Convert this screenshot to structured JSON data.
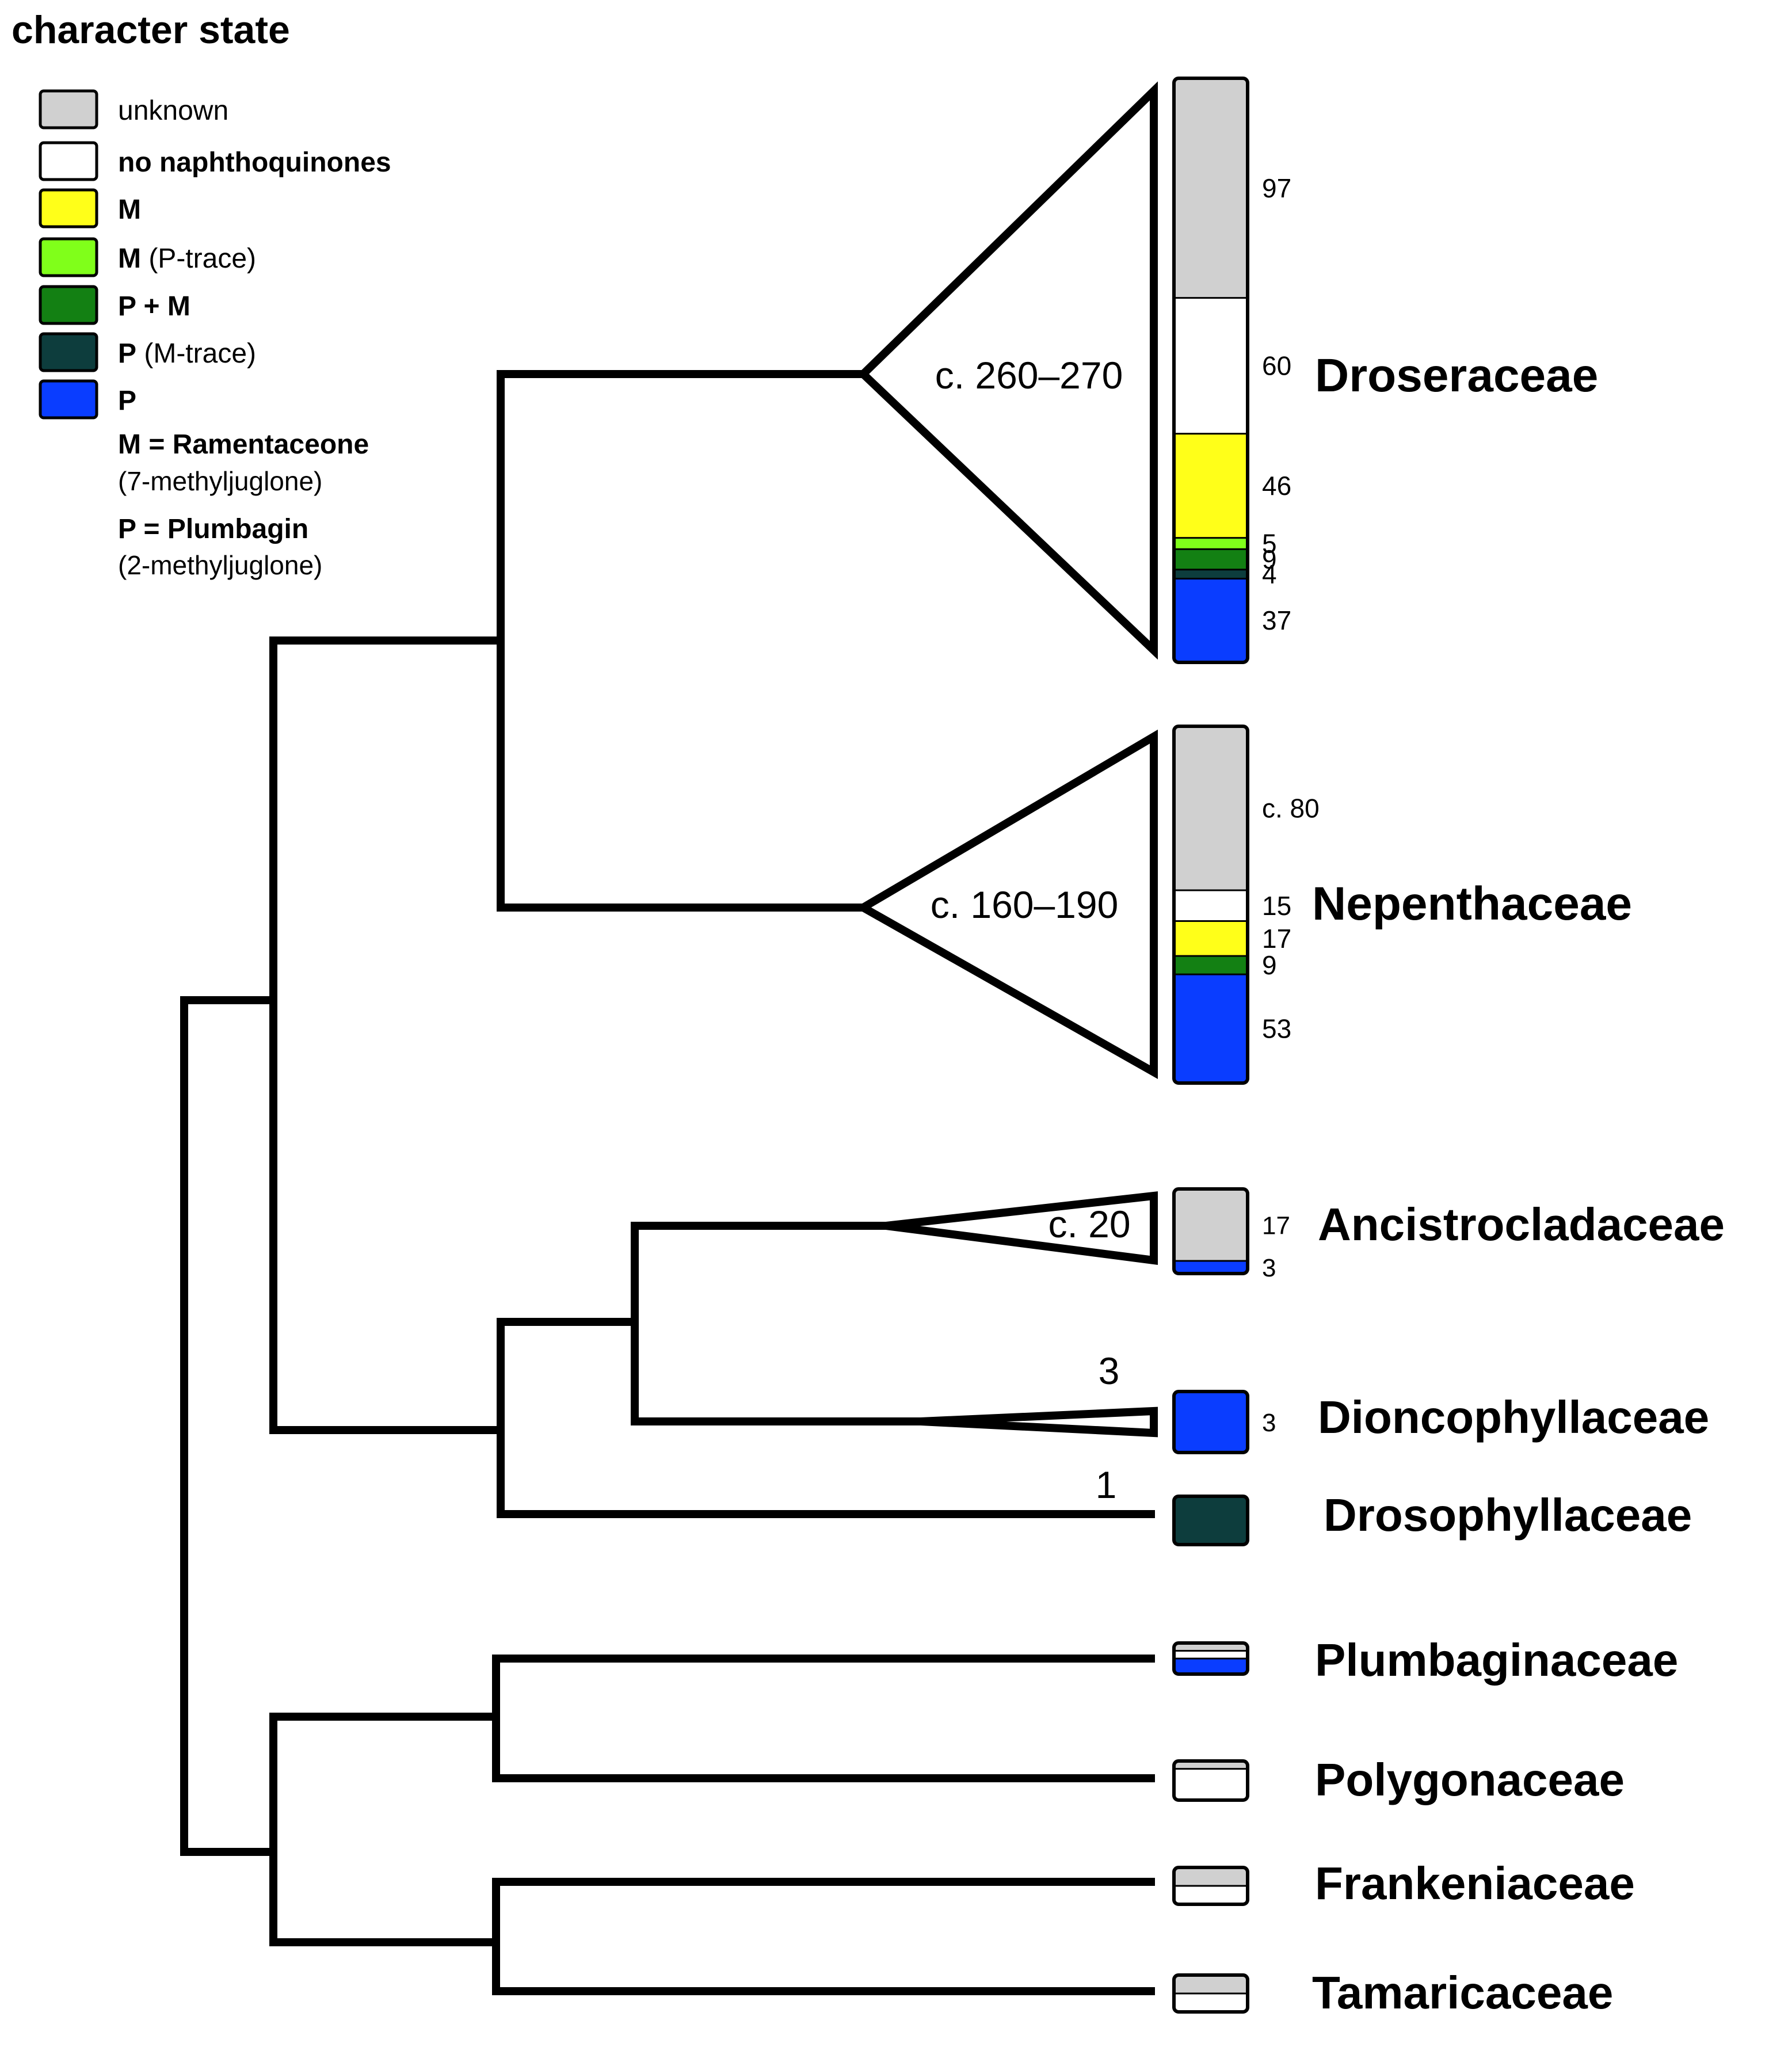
{
  "legend": {
    "title": "character state",
    "items": [
      {
        "key": "unknown",
        "bold": "",
        "rest": "unknown",
        "color": "#d0d0d0"
      },
      {
        "key": "none",
        "bold": "no naphthoquinones",
        "rest": "",
        "color": "#ffffff"
      },
      {
        "key": "M",
        "bold": "M",
        "rest": "",
        "color": "#ffff19"
      },
      {
        "key": "M_Ptrace",
        "bold": "M",
        "rest": " (P-trace)",
        "color": "#80ff1a"
      },
      {
        "key": "PM",
        "bold": "P + M",
        "rest": "",
        "color": "#138013"
      },
      {
        "key": "P_Mtrace",
        "bold": "P",
        "rest": " (M-trace)",
        "color": "#0d3d3d"
      },
      {
        "key": "P",
        "bold": "P",
        "rest": "",
        "color": "#0a3dff"
      }
    ],
    "notes": [
      {
        "bold": "M = Ramentaceone",
        "plain": "(7-methyljuglone)"
      },
      {
        "bold": "P = Plumbagin",
        "plain": "(2-methyljuglone)"
      }
    ]
  },
  "families": [
    {
      "name": "Droseraceae",
      "clade_label": "c. 260–270",
      "segments": [
        {
          "state": "unknown",
          "count": 97,
          "label": "97"
        },
        {
          "state": "none",
          "count": 60,
          "label": "60"
        },
        {
          "state": "M",
          "count": 46,
          "label": "46"
        },
        {
          "state": "M_Ptrace",
          "count": 5,
          "label": "5"
        },
        {
          "state": "PM",
          "count": 9,
          "label": "9"
        },
        {
          "state": "P_Mtrace",
          "count": 4,
          "label": "4"
        },
        {
          "state": "P",
          "count": 37,
          "label": "37"
        }
      ]
    },
    {
      "name": "Nepenthaceae",
      "clade_label": "c. 160–190",
      "segments": [
        {
          "state": "unknown",
          "count": 80,
          "label": "c. 80"
        },
        {
          "state": "none",
          "count": 15,
          "label": "15"
        },
        {
          "state": "M",
          "count": 17,
          "label": "17"
        },
        {
          "state": "PM",
          "count": 9,
          "label": "9"
        },
        {
          "state": "P",
          "count": 53,
          "label": "53"
        }
      ]
    },
    {
      "name": "Ancistrocladaceae",
      "clade_label": "c. 20",
      "segments": [
        {
          "state": "unknown",
          "count": 17,
          "label": "17"
        },
        {
          "state": "P",
          "count": 3,
          "label": "3"
        }
      ]
    },
    {
      "name": "Dioncophyllaceae",
      "clade_label": "3",
      "segments": [
        {
          "state": "P",
          "count": 3,
          "label": "3"
        }
      ]
    },
    {
      "name": "Drosophyllaceae",
      "clade_label": "1",
      "segments": [
        {
          "state": "P_Mtrace",
          "count": 1,
          "label": ""
        }
      ]
    },
    {
      "name": "Plumbaginaceae",
      "clade_label": "",
      "segments": [
        {
          "state": "unknown",
          "count": 1,
          "label": ""
        },
        {
          "state": "none",
          "count": 1,
          "label": ""
        },
        {
          "state": "P",
          "count": 2,
          "label": ""
        }
      ]
    },
    {
      "name": "Polygonaceae",
      "clade_label": "",
      "segments": [
        {
          "state": "unknown",
          "count": 1,
          "label": ""
        },
        {
          "state": "none",
          "count": 4,
          "label": ""
        }
      ]
    },
    {
      "name": "Frankeniaceae",
      "clade_label": "",
      "segments": [
        {
          "state": "unknown",
          "count": 1,
          "label": ""
        },
        {
          "state": "none",
          "count": 1,
          "label": ""
        }
      ]
    },
    {
      "name": "Tamaricaceae",
      "clade_label": "",
      "segments": [
        {
          "state": "unknown",
          "count": 1,
          "label": ""
        },
        {
          "state": "none",
          "count": 1,
          "label": ""
        }
      ]
    }
  ]
}
